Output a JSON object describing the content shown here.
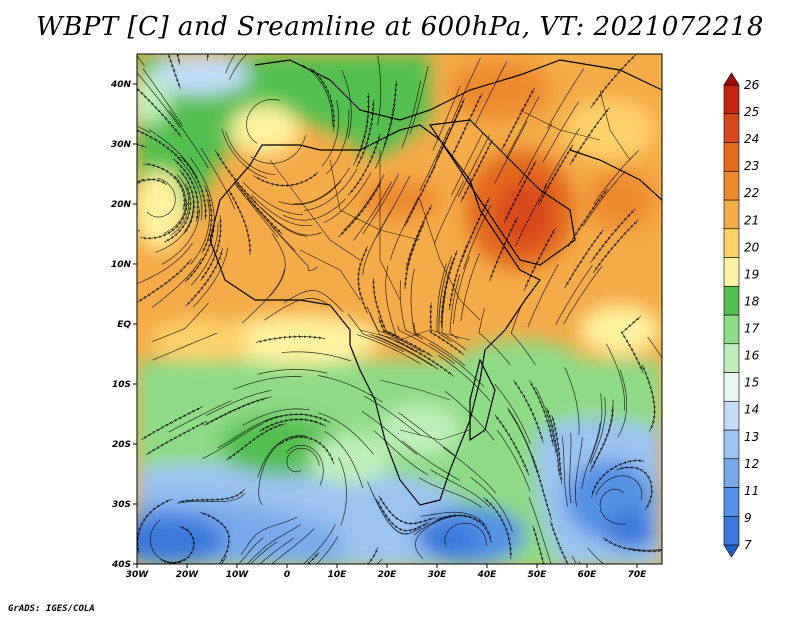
{
  "title": "WBPT [C] and Sreamline at 600hPa, VT: 2021072218",
  "credit": "GrADS: IGES/COLA",
  "map": {
    "lon_range": [
      -30,
      75
    ],
    "lat_range": [
      -40,
      45
    ],
    "lat_ticks": [
      {
        "value": 40,
        "label": "40N"
      },
      {
        "value": 30,
        "label": "30N"
      },
      {
        "value": 20,
        "label": "20N"
      },
      {
        "value": 10,
        "label": "10N"
      },
      {
        "value": 0,
        "label": "EQ"
      },
      {
        "value": -10,
        "label": "10S"
      },
      {
        "value": -20,
        "label": "20S"
      },
      {
        "value": -30,
        "label": "30S"
      },
      {
        "value": -40,
        "label": "40S"
      }
    ],
    "lon_ticks": [
      {
        "value": -30,
        "label": "30W"
      },
      {
        "value": -20,
        "label": "20W"
      },
      {
        "value": -10,
        "label": "10W"
      },
      {
        "value": 0,
        "label": "0"
      },
      {
        "value": 10,
        "label": "10E"
      },
      {
        "value": 20,
        "label": "20E"
      },
      {
        "value": 30,
        "label": "30E"
      },
      {
        "value": 40,
        "label": "40E"
      },
      {
        "value": 50,
        "label": "50E"
      },
      {
        "value": 60,
        "label": "60E"
      },
      {
        "value": 70,
        "label": "70E"
      }
    ]
  },
  "colorbar": {
    "levels": [
      "7",
      "9",
      "11",
      "12",
      "13",
      "14",
      "15",
      "16",
      "17",
      "18",
      "19",
      "20",
      "21",
      "22",
      "23",
      "24",
      "25",
      "26"
    ],
    "colors": [
      "#1f5fd0",
      "#3a78dc",
      "#5592e4",
      "#78aaeb",
      "#9cc3f1",
      "#c2dcf7",
      "#e6f7ee",
      "#bfeebb",
      "#8fdc86",
      "#55c04f",
      "#fff2a0",
      "#ffd16b",
      "#f4ac48",
      "#ee8a2e",
      "#e46a1e",
      "#d8481a",
      "#c42410",
      "#a30b08"
    ]
  }
}
